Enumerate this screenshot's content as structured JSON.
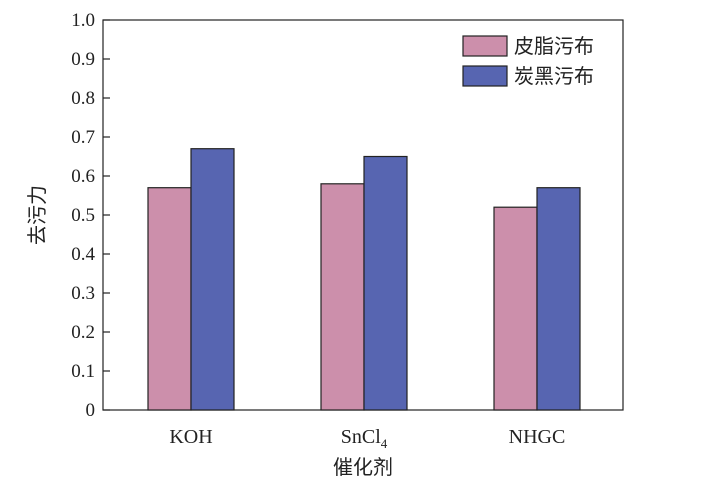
{
  "chart_data": {
    "type": "bar",
    "categories": [
      "KOH",
      "SnCl4",
      "NHGC"
    ],
    "series": [
      {
        "name": "皮脂污布",
        "values": [
          0.57,
          0.58,
          0.52
        ],
        "color": "#cc8fab"
      },
      {
        "name": "炭黑污布",
        "values": [
          0.67,
          0.65,
          0.57
        ],
        "color": "#5765b1"
      }
    ],
    "title": "",
    "xlabel": "催化剂",
    "ylabel": "去污力",
    "ylim": [
      0,
      1.0
    ],
    "yticks": [
      0,
      0.1,
      0.2,
      0.3,
      0.4,
      0.5,
      0.6,
      0.7,
      0.8,
      0.9,
      1.0
    ],
    "grid": false,
    "legend_position": "top-right"
  }
}
